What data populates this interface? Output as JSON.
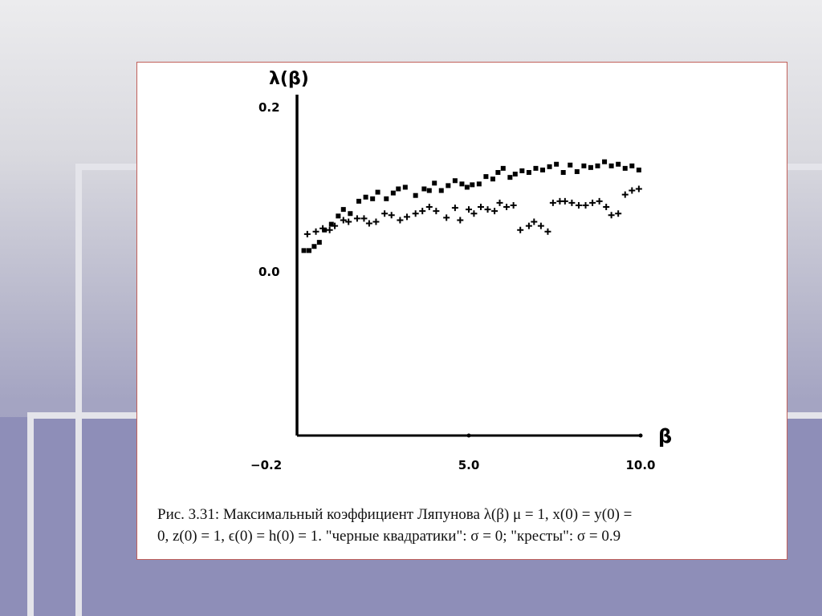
{
  "caption": {
    "line1": "Рис. 3.31: Максимальный коэффициент Ляпунова λ(β) μ = 1,  x(0) = y(0) =",
    "line2": "0, z(0) = 1,  ϵ(0) = h(0) = 1. \"черные квадратики\": σ = 0;  \"кресты\": σ = 0.9"
  },
  "chart_data": {
    "type": "scatter",
    "title": "",
    "xlabel": "β",
    "ylabel": "λ(β)",
    "xlim": [
      0,
      10
    ],
    "ylim": [
      -0.2,
      0.2
    ],
    "x_ticks": [
      {
        "value": 5,
        "label": "5.0"
      },
      {
        "value": 10,
        "label": "10.0"
      }
    ],
    "y_ticks": [
      {
        "value": 0.2,
        "label": "0.2"
      },
      {
        "value": 0,
        "label": "0.0"
      },
      {
        "value": -0.2,
        "label": "−0.2"
      }
    ],
    "grid": false,
    "series": [
      {
        "marker": "square",
        "x": [
          0.2,
          0.35,
          0.5,
          0.65,
          0.8,
          1.0,
          1.2,
          1.35,
          1.55,
          1.8,
          2.0,
          2.2,
          2.35,
          2.6,
          2.8,
          2.95,
          3.15,
          3.45,
          3.7,
          3.85,
          4.0,
          4.2,
          4.4,
          4.6,
          4.8,
          4.95,
          5.1,
          5.3,
          5.5,
          5.7,
          5.85,
          6.0,
          6.2,
          6.35,
          6.55,
          6.75,
          6.95,
          7.15,
          7.35,
          7.55,
          7.75,
          7.95,
          8.15,
          8.35,
          8.55,
          8.75,
          8.95,
          9.15,
          9.35,
          9.55,
          9.75,
          9.95
        ],
        "y": [
          0.025,
          0.025,
          0.03,
          0.035,
          0.05,
          0.057,
          0.067,
          0.075,
          0.07,
          0.085,
          0.09,
          0.088,
          0.096,
          0.088,
          0.095,
          0.1,
          0.102,
          0.092,
          0.1,
          0.098,
          0.107,
          0.098,
          0.104,
          0.11,
          0.106,
          0.102,
          0.105,
          0.106,
          0.115,
          0.112,
          0.12,
          0.125,
          0.114,
          0.118,
          0.122,
          0.12,
          0.125,
          0.123,
          0.127,
          0.13,
          0.12,
          0.129,
          0.121,
          0.128,
          0.126,
          0.128,
          0.133,
          0.128,
          0.13,
          0.125,
          0.128,
          0.123
        ]
      },
      {
        "marker": "cross",
        "x": [
          0.3,
          0.55,
          0.75,
          0.95,
          1.1,
          1.35,
          1.5,
          1.75,
          1.95,
          2.1,
          2.3,
          2.55,
          2.75,
          3.0,
          3.2,
          3.45,
          3.65,
          3.85,
          4.05,
          4.35,
          4.6,
          4.75,
          5.0,
          5.15,
          5.35,
          5.55,
          5.75,
          5.9,
          6.1,
          6.3,
          6.5,
          6.75,
          6.9,
          7.1,
          7.3,
          7.45,
          7.65,
          7.8,
          8.0,
          8.2,
          8.4,
          8.6,
          8.8,
          9.0,
          9.15,
          9.35,
          9.55,
          9.75,
          9.95
        ],
        "y": [
          0.045,
          0.048,
          0.052,
          0.05,
          0.055,
          0.062,
          0.06,
          0.064,
          0.064,
          0.058,
          0.06,
          0.07,
          0.068,
          0.062,
          0.066,
          0.07,
          0.073,
          0.078,
          0.073,
          0.065,
          0.077,
          0.062,
          0.075,
          0.07,
          0.078,
          0.075,
          0.073,
          0.083,
          0.078,
          0.08,
          0.05,
          0.055,
          0.06,
          0.055,
          0.048,
          0.083,
          0.085,
          0.085,
          0.083,
          0.08,
          0.08,
          0.083,
          0.085,
          0.078,
          0.068,
          0.07,
          0.093,
          0.098,
          0.1
        ]
      }
    ]
  }
}
